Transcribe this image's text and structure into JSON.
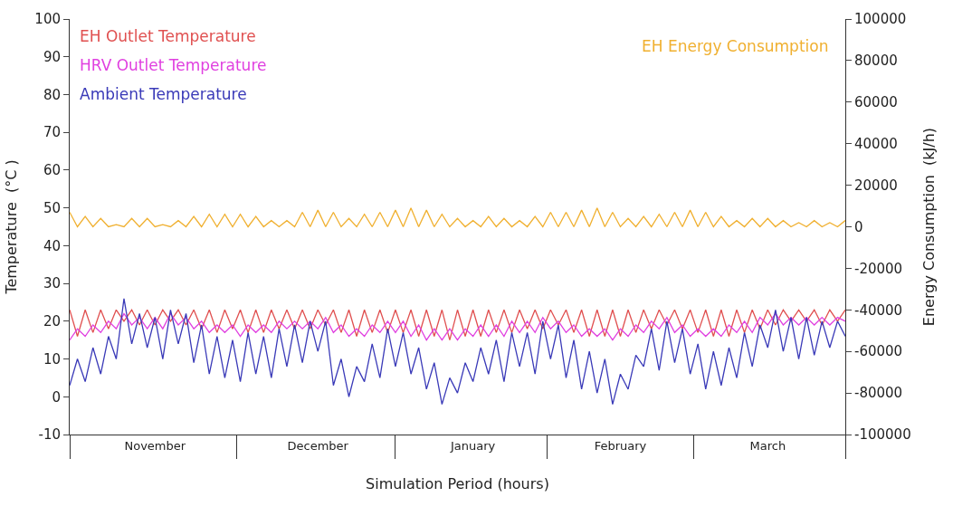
{
  "chart_data": {
    "type": "line",
    "xlabel": "Simulation Period (hours)",
    "ylabel": "Temperature  (°C )",
    "y2label": "Energy Consumption  (kJ/h)",
    "categories": [
      null,
      null,
      null,
      null,
      null,
      null,
      null,
      null,
      null,
      null,
      null,
      "November",
      null,
      null,
      null,
      null,
      null,
      null,
      null,
      null,
      null,
      null,
      null,
      null,
      null,
      null,
      null,
      null,
      null,
      null,
      null,
      null,
      "December",
      null,
      null,
      null,
      null,
      null,
      null,
      null,
      null,
      null,
      null,
      null,
      null,
      null,
      null,
      null,
      null,
      null,
      null,
      null,
      "January",
      null,
      null,
      null,
      null,
      null,
      null,
      null,
      null,
      null,
      null,
      null,
      null,
      null,
      null,
      null,
      null,
      null,
      null,
      "February",
      null,
      null,
      null,
      null,
      null,
      null,
      null,
      null,
      null,
      null,
      null,
      null,
      null,
      null,
      null,
      null,
      null,
      null,
      "March",
      null,
      null,
      null,
      null,
      null,
      null,
      null,
      null,
      null,
      null
    ],
    "series": [
      {
        "name": "EH Outlet Temperature",
        "color": "#e05050",
        "values": [
          23,
          16,
          23,
          17,
          23,
          18,
          23,
          20,
          23,
          19,
          23,
          19,
          23,
          20,
          23,
          19,
          23,
          18,
          23,
          17,
          23,
          18,
          23,
          17,
          23,
          17,
          23,
          18,
          23,
          18,
          23,
          18,
          23,
          19,
          23,
          17,
          23,
          16,
          23,
          17,
          23,
          17,
          23,
          17,
          23,
          16,
          23,
          16,
          23,
          15,
          23,
          16,
          23,
          16,
          23,
          17,
          23,
          17,
          23,
          18,
          23,
          18,
          23,
          19,
          23,
          17,
          23,
          16,
          23,
          16,
          23,
          16,
          23,
          17,
          23,
          18,
          23,
          19,
          23,
          18,
          23,
          17,
          23,
          16,
          23,
          16,
          23,
          17,
          23,
          18,
          23,
          19,
          23,
          20,
          23,
          20,
          23,
          19,
          23,
          20,
          23
        ]
      },
      {
        "name": "HRV Outlet Temperature",
        "color": "#e040e0",
        "values": [
          15,
          18,
          16,
          19,
          17,
          20,
          18,
          22,
          19,
          21,
          18,
          21,
          18,
          22,
          19,
          21,
          18,
          20,
          17,
          19,
          17,
          19,
          16,
          19,
          17,
          19,
          17,
          20,
          18,
          20,
          18,
          20,
          18,
          21,
          17,
          19,
          16,
          18,
          16,
          19,
          17,
          20,
          17,
          20,
          16,
          19,
          15,
          18,
          15,
          18,
          15,
          18,
          16,
          19,
          16,
          19,
          16,
          20,
          17,
          20,
          17,
          21,
          18,
          20,
          17,
          19,
          16,
          18,
          16,
          18,
          15,
          18,
          16,
          19,
          17,
          20,
          18,
          21,
          17,
          19,
          16,
          18,
          16,
          18,
          16,
          19,
          17,
          20,
          17,
          21,
          19,
          22,
          19,
          21,
          19,
          21,
          19,
          21,
          19,
          21,
          20
        ]
      },
      {
        "name": "Ambient Temperature",
        "color": "#3a3ab8",
        "values": [
          3,
          10,
          4,
          13,
          6,
          16,
          10,
          26,
          14,
          22,
          13,
          21,
          10,
          23,
          14,
          22,
          9,
          19,
          6,
          16,
          5,
          15,
          4,
          17,
          6,
          16,
          5,
          18,
          8,
          19,
          9,
          20,
          12,
          20,
          3,
          10,
          0,
          8,
          4,
          14,
          5,
          18,
          8,
          17,
          6,
          13,
          2,
          9,
          -2,
          5,
          1,
          9,
          4,
          13,
          6,
          15,
          4,
          17,
          8,
          17,
          6,
          20,
          10,
          19,
          5,
          15,
          2,
          12,
          1,
          10,
          -2,
          6,
          2,
          11,
          8,
          18,
          7,
          20,
          9,
          18,
          6,
          14,
          2,
          12,
          3,
          13,
          5,
          17,
          8,
          19,
          13,
          23,
          12,
          21,
          10,
          21,
          11,
          20,
          13,
          20,
          16
        ]
      },
      {
        "name": "EH Energy Consumption",
        "color": "#f0b030",
        "axis": "y2",
        "values": [
          7000,
          0,
          5000,
          0,
          4000,
          0,
          1000,
          0,
          4000,
          0,
          4000,
          0,
          1000,
          0,
          3000,
          0,
          5000,
          0,
          6000,
          0,
          6000,
          0,
          6000,
          0,
          5000,
          0,
          3000,
          0,
          3000,
          0,
          7000,
          0,
          8000,
          0,
          7000,
          0,
          4000,
          0,
          6000,
          0,
          7000,
          0,
          8000,
          0,
          9000,
          0,
          8000,
          0,
          6000,
          0,
          4000,
          0,
          3000,
          0,
          5000,
          0,
          4000,
          0,
          3000,
          0,
          5000,
          0,
          7000,
          0,
          7000,
          0,
          8000,
          0,
          9000,
          0,
          7000,
          0,
          4000,
          0,
          5000,
          0,
          6000,
          0,
          7000,
          0,
          8000,
          0,
          7000,
          0,
          5000,
          0,
          3000,
          0,
          4000,
          0,
          4000,
          0,
          3000,
          0,
          2000,
          0,
          3000,
          0,
          2000,
          0,
          3000
        ]
      }
    ],
    "ylim": [
      -10,
      100
    ],
    "yticks": [
      -10,
      0,
      10,
      20,
      30,
      40,
      50,
      60,
      70,
      80,
      90,
      100
    ],
    "y2lim": [
      -100000,
      100000
    ],
    "y2ticks": [
      -100000,
      -80000,
      -60000,
      -40000,
      -20000,
      0,
      20000,
      40000,
      60000,
      80000,
      100000
    ],
    "legend": false,
    "marker": "none",
    "line_style": "solid"
  }
}
